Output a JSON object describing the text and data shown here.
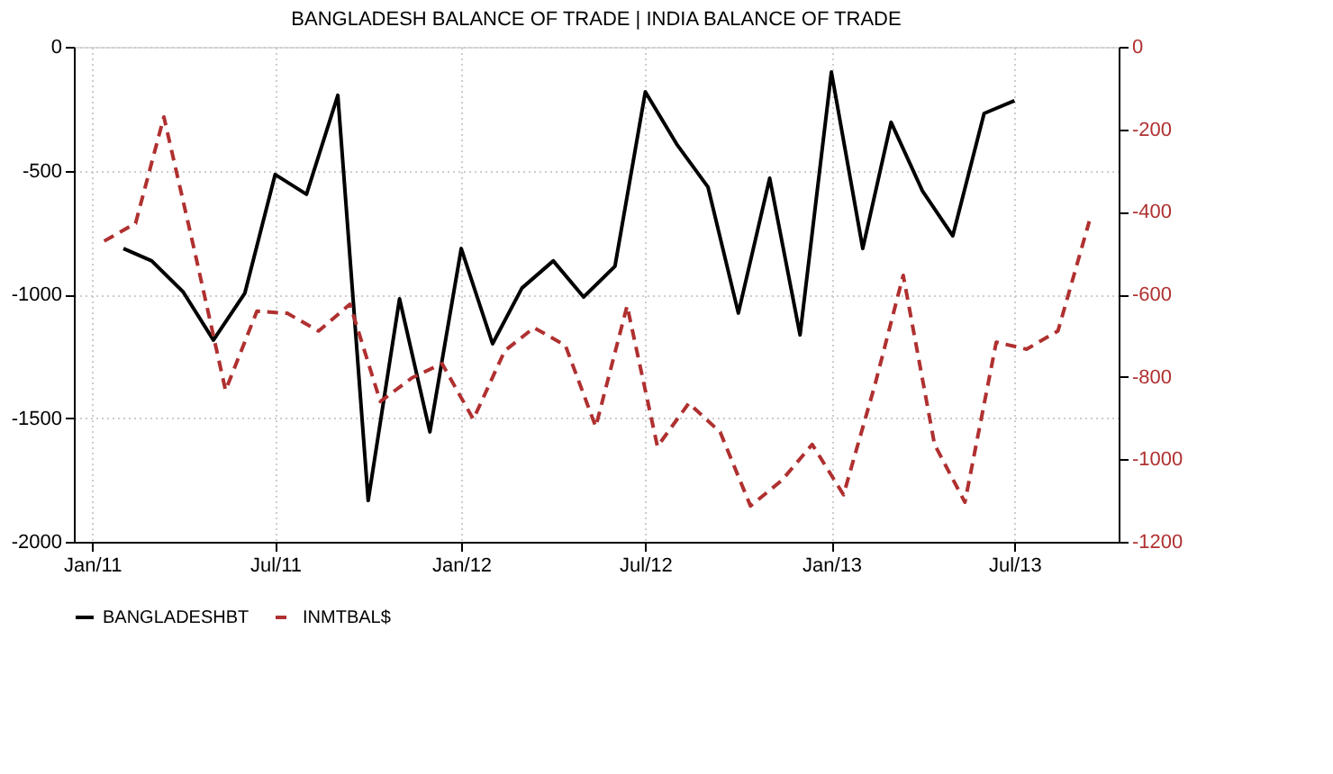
{
  "chart_data": {
    "type": "line",
    "title": "BANGLADESH BALANCE OF TRADE |  INDIA BALANCE OF TRADE",
    "xlim": [
      "2010-12-14",
      "2013-10-12"
    ],
    "xticks": [
      {
        "value": "2011-01-01",
        "label": "Jan/11"
      },
      {
        "value": "2011-07-01",
        "label": "Jul/11"
      },
      {
        "value": "2012-01-01",
        "label": "Jan/12"
      },
      {
        "value": "2012-07-01",
        "label": "Jul/12"
      },
      {
        "value": "2013-01-01",
        "label": "Jan/13"
      },
      {
        "value": "2013-07-01",
        "label": "Jul/13"
      }
    ],
    "ylim": [
      -2000,
      0
    ],
    "yticks": [
      -2000,
      -1500,
      -1000,
      -500,
      0
    ],
    "y2lim": [
      -1200,
      0
    ],
    "y2ticks": [
      -1200,
      -1000,
      -800,
      -600,
      -400,
      -200,
      0
    ],
    "grid": true,
    "legend": "bottom",
    "series": [
      {
        "name": "BANGLADESHBT",
        "color": "#000000",
        "line_style": "solid",
        "x": [
          "2011-02-01",
          "2011-03-01",
          "2011-04-01",
          "2011-05-01",
          "2011-06-01",
          "2011-07-01",
          "2011-08-01",
          "2011-09-01",
          "2011-10-01",
          "2011-11-01",
          "2011-12-01",
          "2012-01-01",
          "2012-02-01",
          "2012-03-01",
          "2012-04-01",
          "2012-05-01",
          "2012-06-01",
          "2012-07-01",
          "2012-08-01",
          "2012-09-01",
          "2012-10-01",
          "2012-11-01",
          "2012-12-01",
          "2013-01-01",
          "2013-02-01",
          "2013-03-01",
          "2013-04-01",
          "2013-05-01",
          "2013-06-01",
          "2013-07-01"
        ],
        "values": [
          -815,
          -865,
          -990,
          -1185,
          -996,
          -516,
          -596,
          -196,
          -1833,
          -1018,
          -1556,
          -815,
          -1200,
          -975,
          -865,
          -1011,
          -887,
          -182,
          -393,
          -567,
          -1076,
          -531,
          -1164,
          -102,
          -815,
          -305,
          -582,
          -764,
          -269,
          -218
        ]
      },
      {
        "name": "INMTBAL$",
        "color": "#b03030",
        "line_style": "dashed",
        "axis": "y2",
        "x": [
          "2011-01-13",
          "2011-02-13",
          "2011-03-13",
          "2011-04-13",
          "2011-05-13",
          "2011-06-13",
          "2011-07-13",
          "2011-08-13",
          "2011-09-13",
          "2011-10-13",
          "2011-11-13",
          "2011-12-13",
          "2012-01-13",
          "2012-02-13",
          "2012-03-13",
          "2012-04-13",
          "2012-05-13",
          "2012-06-13",
          "2012-07-13",
          "2012-08-13",
          "2012-09-13",
          "2012-10-13",
          "2012-11-13",
          "2012-12-13",
          "2013-01-13",
          "2013-02-13",
          "2013-03-13",
          "2013-04-13",
          "2013-05-13",
          "2013-06-13",
          "2013-07-13",
          "2013-08-13",
          "2013-09-13"
        ],
        "values": [
          -471,
          -428,
          -170,
          -502,
          -833,
          -641,
          -646,
          -689,
          -624,
          -860,
          -803,
          -768,
          -903,
          -737,
          -681,
          -724,
          -921,
          -628,
          -969,
          -864,
          -934,
          -1113,
          -1051,
          -964,
          -1086,
          -820,
          -554,
          -964,
          -1104,
          -716,
          -733,
          -689,
          -423
        ]
      }
    ]
  }
}
